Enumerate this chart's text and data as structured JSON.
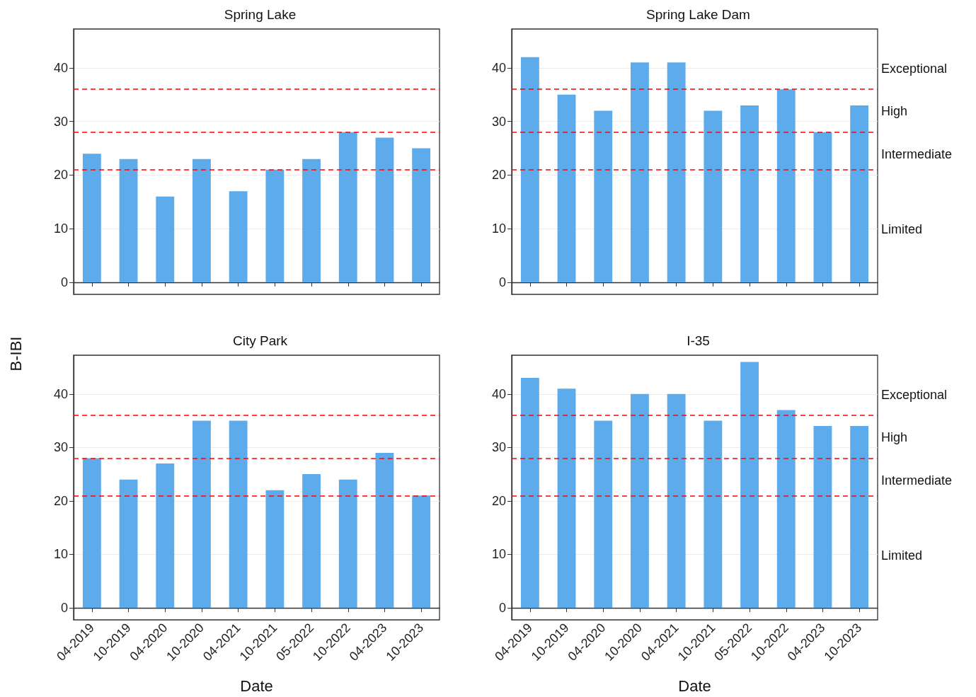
{
  "chart_data": [
    {
      "type": "bar",
      "title": "Spring Lake",
      "categories": [
        null,
        null,
        null,
        null,
        null,
        null,
        null,
        null,
        null,
        null
      ],
      "values": [
        24,
        23,
        16,
        23,
        17,
        21,
        23,
        28,
        27,
        25
      ],
      "color": "#5dabeb",
      "ylim": [
        -2.25,
        47.25
      ],
      "yticks": [
        0,
        10,
        20,
        30,
        40
      ],
      "grid": "y",
      "ref_lines": [
        {
          "axis": "y",
          "value": 21,
          "color": "#ff0000",
          "line_style": "dashed"
        },
        {
          "axis": "y",
          "value": 28,
          "color": "#ff0000",
          "line_style": "dashed"
        },
        {
          "axis": "y",
          "value": 36,
          "color": "#ff0000",
          "line_style": "dashed"
        }
      ]
    },
    {
      "type": "bar",
      "title": "Spring Lake Dam",
      "categories": [
        null,
        null,
        null,
        null,
        null,
        null,
        null,
        null,
        null,
        null
      ],
      "values": [
        42,
        35,
        32,
        41,
        41,
        32,
        33,
        36,
        28,
        33
      ],
      "color": "#5dabeb",
      "ylim": [
        -2.25,
        47.25
      ],
      "yticks": [
        0,
        10,
        20,
        30,
        40
      ],
      "grid": "y",
      "ref_lines": [
        {
          "axis": "y",
          "value": 21,
          "color": "#ff0000",
          "line_style": "dashed"
        },
        {
          "axis": "y",
          "value": 28,
          "color": "#ff0000",
          "line_style": "dashed"
        },
        {
          "axis": "y",
          "value": 36,
          "color": "#ff0000",
          "line_style": "dashed"
        }
      ],
      "annotations": [
        "Exceptional",
        "High",
        "Intermediate",
        "Limited"
      ]
    },
    {
      "type": "bar",
      "title": "City Park",
      "xlabel": "Date",
      "ylabel": "B-IBI",
      "categories": [
        "04-2019",
        "10-2019",
        "04-2020",
        "10-2020",
        "04-2021",
        "10-2021",
        "05-2022",
        "10-2022",
        "04-2023",
        "10-2023"
      ],
      "values": [
        28,
        24,
        27,
        35,
        35,
        22,
        25,
        24,
        29,
        21
      ],
      "color": "#5dabeb",
      "ylim": [
        -2.25,
        47.25
      ],
      "yticks": [
        0,
        10,
        20,
        30,
        40
      ],
      "grid": "y",
      "ref_lines": [
        {
          "axis": "y",
          "value": 21,
          "color": "#ff0000",
          "line_style": "dashed"
        },
        {
          "axis": "y",
          "value": 28,
          "color": "#ff0000",
          "line_style": "dashed"
        },
        {
          "axis": "y",
          "value": 36,
          "color": "#ff0000",
          "line_style": "dashed"
        }
      ]
    },
    {
      "type": "bar",
      "title": "I-35",
      "xlabel": "Date",
      "categories": [
        "04-2019",
        "10-2019",
        "04-2020",
        "10-2020",
        "04-2021",
        "10-2021",
        "05-2022",
        "10-2022",
        "04-2023",
        "10-2023"
      ],
      "values": [
        43,
        41,
        35,
        40,
        40,
        35,
        46,
        37,
        34,
        34
      ],
      "color": "#5dabeb",
      "ylim": [
        -2.25,
        47.25
      ],
      "yticks": [
        0,
        10,
        20,
        30,
        40
      ],
      "grid": "y",
      "ref_lines": [
        {
          "axis": "y",
          "value": 21,
          "color": "#ff0000",
          "line_style": "dashed"
        },
        {
          "axis": "y",
          "value": 28,
          "color": "#ff0000",
          "line_style": "dashed"
        },
        {
          "axis": "y",
          "value": 36,
          "color": "#ff0000",
          "line_style": "dashed"
        }
      ],
      "annotations": [
        "Exceptional",
        "High",
        "Intermediate",
        "Limited"
      ]
    }
  ]
}
